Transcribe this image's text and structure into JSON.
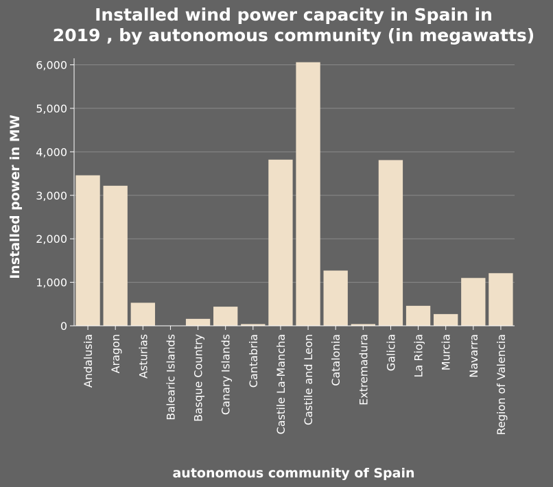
{
  "chart_data": {
    "type": "bar",
    "title_lines": [
      "Installed wind power capacity in Spain in",
      "2019 , by autonomous community (in megawatts)"
    ],
    "xlabel": "autonomous community of Spain",
    "ylabel": "Installed power in MW",
    "categories": [
      "Andalusia",
      "Aragon",
      "Asturias",
      "Balearic Islands",
      "Basque Country",
      "Canary Islands",
      "Cantabria",
      "Castile La-Mancha",
      "Castile and Leon",
      "Catalonia",
      "Extremadura",
      "Galicia",
      "La Rioja",
      "Murcia",
      "Navarra",
      "Region of Valencia"
    ],
    "values": [
      3460,
      3220,
      530,
      4,
      160,
      440,
      40,
      3820,
      6060,
      1270,
      40,
      3810,
      460,
      270,
      1100,
      1210
    ],
    "ylim": [
      0,
      6150
    ],
    "yticks": [
      0,
      1000,
      2000,
      3000,
      4000,
      5000,
      6000
    ],
    "ytick_labels": [
      "0",
      "1,000",
      "2,000",
      "3,000",
      "4,000",
      "5,000",
      "6,000"
    ],
    "grid": true,
    "colors": {
      "background": "#636363",
      "bar": "#f0e0c8",
      "text": "#ffffff",
      "grid": "#8a8a8a"
    }
  }
}
